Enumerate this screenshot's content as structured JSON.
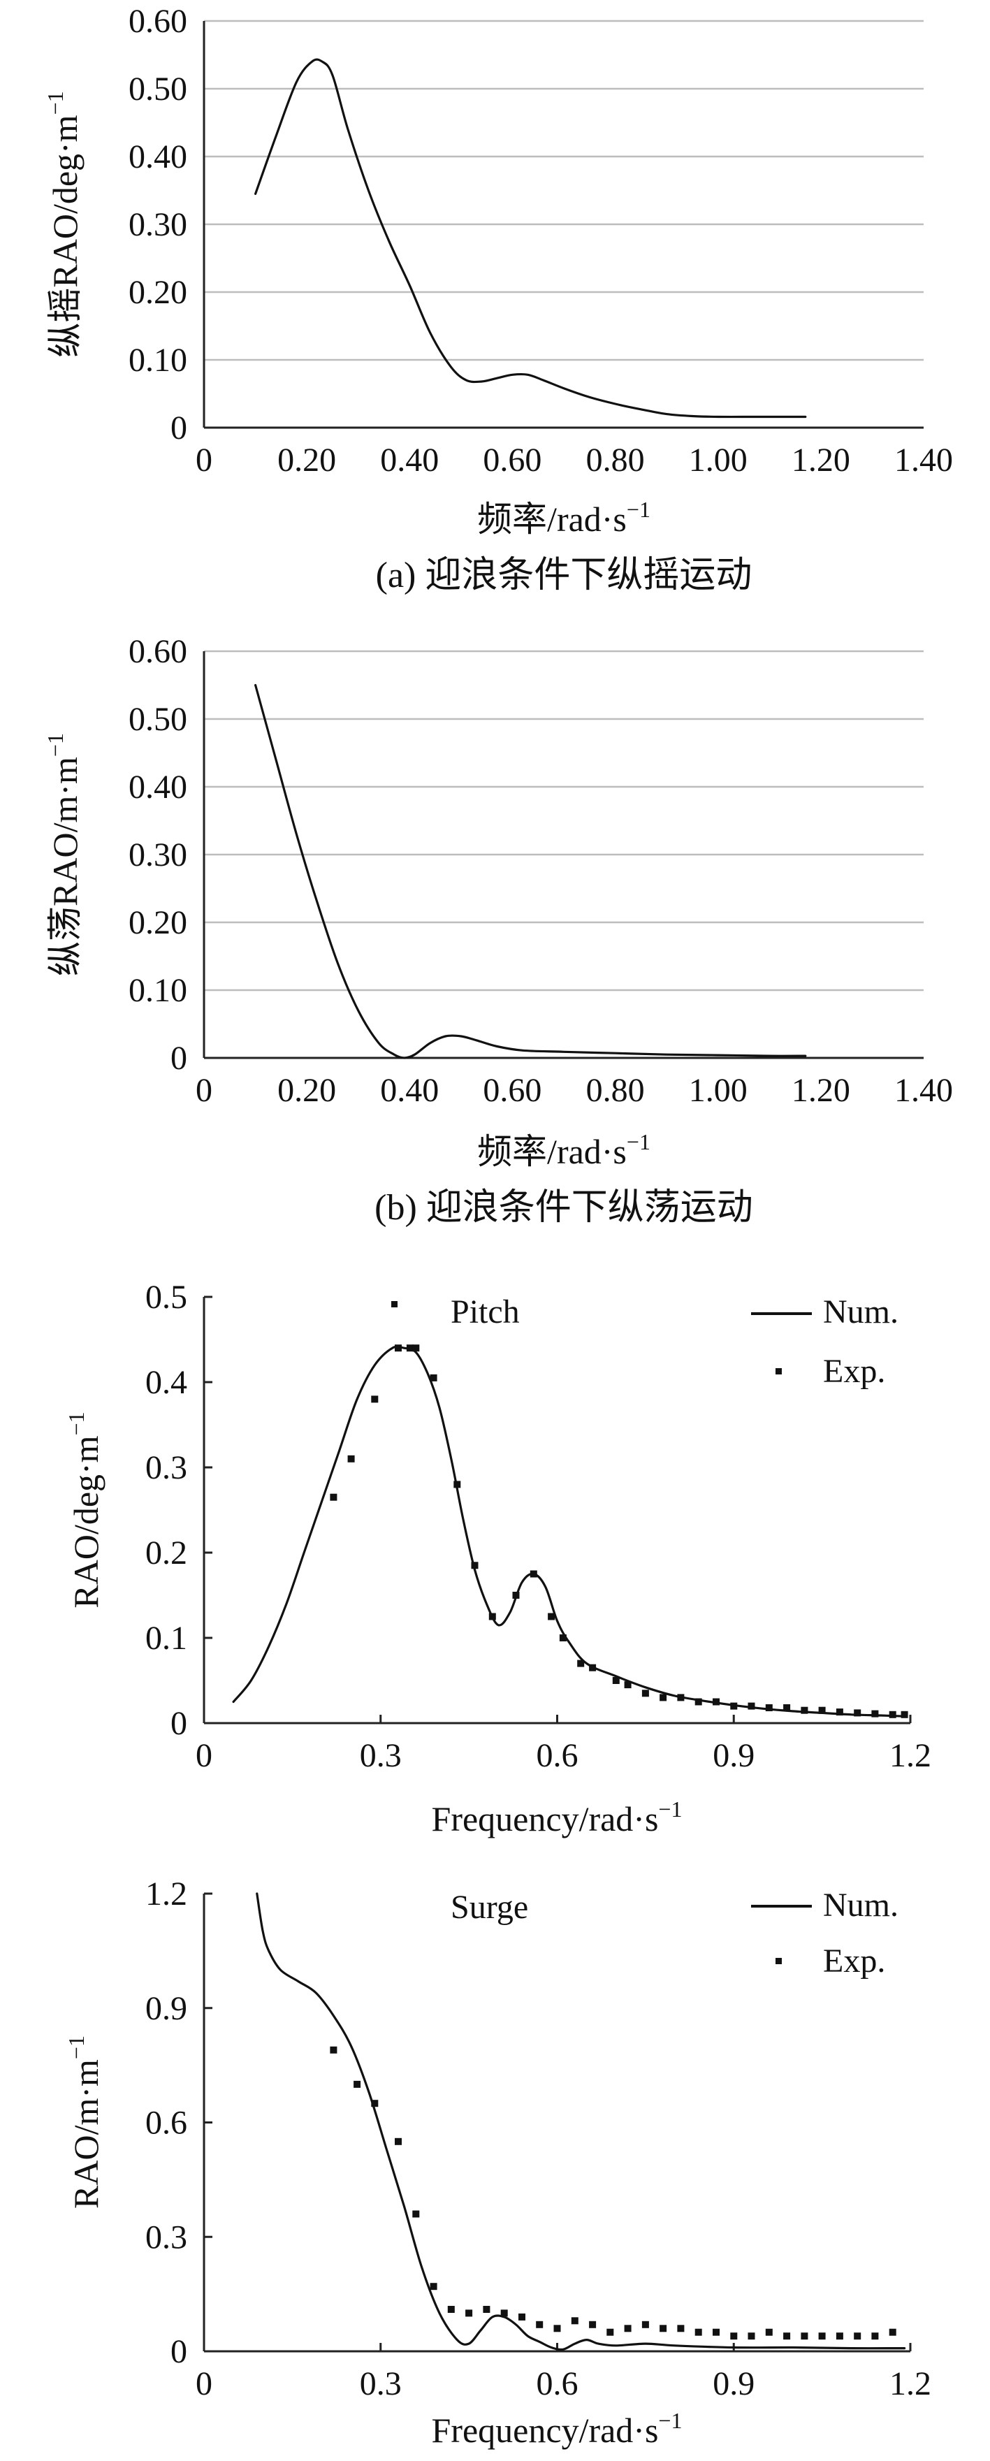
{
  "charts": [
    {
      "type": "line",
      "caption": "(a) 迎浪条件下纵摇运动",
      "xlabel": "频率/rad·s",
      "xlabel_sup": "−1",
      "ylabel": "纵摇RAO/deg·m",
      "ylabel_sup": "−1",
      "xlim": [
        0,
        1.4
      ],
      "ylim": [
        0,
        0.6
      ],
      "xticks": [
        "0",
        "0.20",
        "0.40",
        "0.60",
        "0.80",
        "1.00",
        "1.20",
        "1.40"
      ],
      "yticks": [
        "0",
        "0.10",
        "0.20",
        "0.30",
        "0.40",
        "0.50",
        "0.60"
      ],
      "grid": "horizontal",
      "series": [
        {
          "name": "纵摇",
          "x": [
            0.1,
            0.14,
            0.18,
            0.21,
            0.23,
            0.25,
            0.28,
            0.32,
            0.36,
            0.4,
            0.44,
            0.48,
            0.51,
            0.54,
            0.57,
            0.6,
            0.63,
            0.66,
            0.7,
            0.75,
            0.8,
            0.85,
            0.9,
            0.95,
            1.0,
            1.05,
            1.1,
            1.17
          ],
          "y": [
            0.345,
            0.43,
            0.51,
            0.54,
            0.54,
            0.52,
            0.44,
            0.35,
            0.275,
            0.21,
            0.14,
            0.09,
            0.07,
            0.068,
            0.073,
            0.078,
            0.078,
            0.07,
            0.058,
            0.045,
            0.035,
            0.027,
            0.02,
            0.017,
            0.016,
            0.016,
            0.016,
            0.016
          ]
        }
      ]
    },
    {
      "type": "line",
      "caption": "(b) 迎浪条件下纵荡运动",
      "xlabel": "频率/rad·s",
      "xlabel_sup": "−1",
      "ylabel": "纵荡RAO/m·m",
      "ylabel_sup": "−1",
      "xlim": [
        0,
        1.4
      ],
      "ylim": [
        0,
        0.6
      ],
      "xticks": [
        "0",
        "0.20",
        "0.40",
        "0.60",
        "0.80",
        "1.00",
        "1.20",
        "1.40"
      ],
      "yticks": [
        "0",
        "0.10",
        "0.20",
        "0.30",
        "0.40",
        "0.50",
        "0.60"
      ],
      "grid": "horizontal",
      "series": [
        {
          "name": "纵荡",
          "x": [
            0.1,
            0.14,
            0.18,
            0.22,
            0.26,
            0.3,
            0.34,
            0.37,
            0.39,
            0.41,
            0.44,
            0.47,
            0.5,
            0.53,
            0.57,
            0.62,
            0.7,
            0.8,
            0.9,
            1.0,
            1.1,
            1.17
          ],
          "y": [
            0.55,
            0.44,
            0.33,
            0.23,
            0.14,
            0.07,
            0.022,
            0.005,
            0.0,
            0.005,
            0.022,
            0.032,
            0.032,
            0.026,
            0.017,
            0.011,
            0.009,
            0.007,
            0.005,
            0.004,
            0.003,
            0.003
          ]
        }
      ]
    },
    {
      "type": "line",
      "title": "Pitch",
      "xlabel": "Frequency/rad·s",
      "xlabel_sup": "−1",
      "ylabel": "RAO/deg·m",
      "ylabel_sup": "−1",
      "xlim": [
        0,
        1.2
      ],
      "ylim": [
        0,
        0.5
      ],
      "xticks": [
        "0",
        "0.3",
        "0.6",
        "0.9",
        "1.2"
      ],
      "xtick_values": [
        0,
        0.3,
        0.6,
        0.9,
        1.2
      ],
      "yticks": [
        "0",
        "0.1",
        "0.2",
        "0.3",
        "0.4",
        "0.5"
      ],
      "legend": [
        "Num.",
        "Exp."
      ],
      "legend_position": "top-right",
      "series": [
        {
          "name": "Num.",
          "style": "line",
          "x": [
            0.05,
            0.08,
            0.11,
            0.14,
            0.17,
            0.2,
            0.23,
            0.26,
            0.29,
            0.32,
            0.34,
            0.36,
            0.38,
            0.4,
            0.42,
            0.44,
            0.46,
            0.48,
            0.5,
            0.52,
            0.54,
            0.56,
            0.58,
            0.6,
            0.62,
            0.65,
            0.7,
            0.75,
            0.8,
            0.85,
            0.9,
            0.95,
            1.0,
            1.05,
            1.1,
            1.15,
            1.19
          ],
          "y": [
            0.025,
            0.05,
            0.09,
            0.14,
            0.2,
            0.26,
            0.32,
            0.38,
            0.42,
            0.44,
            0.44,
            0.435,
            0.41,
            0.37,
            0.31,
            0.24,
            0.18,
            0.14,
            0.115,
            0.13,
            0.165,
            0.175,
            0.16,
            0.12,
            0.095,
            0.07,
            0.055,
            0.042,
            0.032,
            0.026,
            0.021,
            0.017,
            0.014,
            0.012,
            0.01,
            0.009,
            0.008
          ]
        },
        {
          "name": "Exp.",
          "style": "dots",
          "x": [
            0.22,
            0.25,
            0.29,
            0.33,
            0.35,
            0.36,
            0.39,
            0.43,
            0.46,
            0.49,
            0.53,
            0.56,
            0.59,
            0.61,
            0.64,
            0.66,
            0.7,
            0.72,
            0.75,
            0.78,
            0.81,
            0.84,
            0.87,
            0.9,
            0.93,
            0.96,
            0.99,
            1.02,
            1.05,
            1.08,
            1.11,
            1.14,
            1.17,
            1.19
          ],
          "y": [
            0.265,
            0.31,
            0.38,
            0.44,
            0.44,
            0.44,
            0.405,
            0.28,
            0.185,
            0.125,
            0.15,
            0.175,
            0.125,
            0.1,
            0.07,
            0.065,
            0.05,
            0.045,
            0.035,
            0.03,
            0.03,
            0.025,
            0.025,
            0.02,
            0.02,
            0.018,
            0.018,
            0.015,
            0.015,
            0.013,
            0.012,
            0.011,
            0.01,
            0.01
          ]
        }
      ]
    },
    {
      "type": "line",
      "title": "Surge",
      "xlabel": "Frequency/rad·s",
      "xlabel_sup": "−1",
      "ylabel": "RAO/m·m",
      "ylabel_sup": "−1",
      "xlim": [
        0,
        1.2
      ],
      "ylim": [
        0,
        1.2
      ],
      "xticks": [
        "0",
        "0.3",
        "0.6",
        "0.9",
        "1.2"
      ],
      "xtick_values": [
        0,
        0.3,
        0.6,
        0.9,
        1.2
      ],
      "yticks": [
        "0",
        "0.3",
        "0.6",
        "0.9",
        "1.2"
      ],
      "legend": [
        "Num.",
        "Exp."
      ],
      "legend_position": "top-right",
      "series": [
        {
          "name": "Num.",
          "style": "line",
          "x": [
            0.09,
            0.1,
            0.11,
            0.13,
            0.16,
            0.19,
            0.22,
            0.25,
            0.28,
            0.31,
            0.34,
            0.37,
            0.4,
            0.43,
            0.45,
            0.47,
            0.49,
            0.51,
            0.53,
            0.55,
            0.57,
            0.59,
            0.61,
            0.63,
            0.65,
            0.67,
            0.7,
            0.75,
            0.8,
            0.9,
            1.0,
            1.1,
            1.19
          ],
          "y": [
            1.2,
            1.1,
            1.05,
            1.0,
            0.97,
            0.94,
            0.88,
            0.8,
            0.68,
            0.53,
            0.38,
            0.22,
            0.1,
            0.03,
            0.02,
            0.055,
            0.09,
            0.09,
            0.07,
            0.04,
            0.025,
            0.01,
            0.005,
            0.02,
            0.03,
            0.02,
            0.015,
            0.02,
            0.015,
            0.01,
            0.01,
            0.008,
            0.008
          ]
        },
        {
          "name": "Exp.",
          "style": "dots",
          "x": [
            0.22,
            0.26,
            0.29,
            0.33,
            0.36,
            0.39,
            0.42,
            0.45,
            0.48,
            0.51,
            0.54,
            0.57,
            0.6,
            0.63,
            0.66,
            0.69,
            0.72,
            0.75,
            0.78,
            0.81,
            0.84,
            0.87,
            0.9,
            0.93,
            0.96,
            0.99,
            1.02,
            1.05,
            1.08,
            1.11,
            1.14,
            1.17
          ],
          "y": [
            0.79,
            0.7,
            0.65,
            0.55,
            0.36,
            0.17,
            0.11,
            0.1,
            0.11,
            0.1,
            0.09,
            0.07,
            0.06,
            0.08,
            0.07,
            0.05,
            0.06,
            0.07,
            0.06,
            0.06,
            0.05,
            0.05,
            0.04,
            0.04,
            0.05,
            0.04,
            0.04,
            0.04,
            0.04,
            0.04,
            0.04,
            0.05
          ]
        }
      ]
    }
  ]
}
